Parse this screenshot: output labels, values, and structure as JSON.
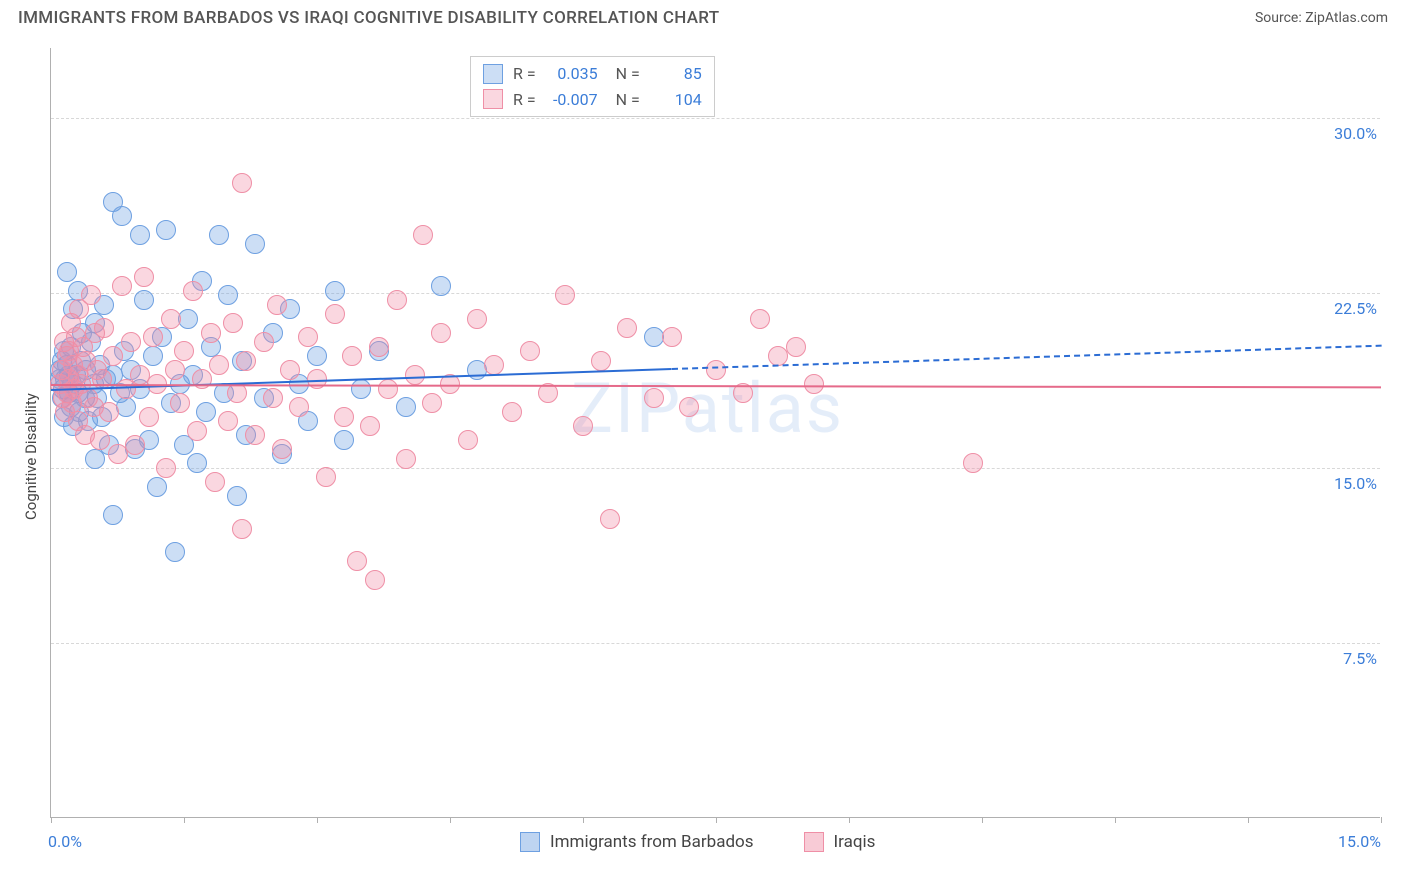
{
  "header": {
    "title": "IMMIGRANTS FROM BARBADOS VS IRAQI COGNITIVE DISABILITY CORRELATION CHART",
    "source": "Source: ZipAtlas.com"
  },
  "chart": {
    "type": "scatter",
    "y_axis_title": "Cognitive Disability",
    "xlim": [
      0,
      15
    ],
    "ylim": [
      0,
      33
    ],
    "x_tick_labels": {
      "left": "0.0%",
      "right": "15.0%"
    },
    "y_ticks": [
      {
        "value": 7.5,
        "label": "7.5%"
      },
      {
        "value": 15.0,
        "label": "15.0%"
      },
      {
        "value": 22.5,
        "label": "22.5%"
      },
      {
        "value": 30.0,
        "label": "30.0%"
      }
    ],
    "x_tick_positions": [
      0,
      1.5,
      3.0,
      4.5,
      6.0,
      7.5,
      9.0,
      10.5,
      12.0,
      13.5,
      15.0
    ],
    "grid_color": "#d8d8d8",
    "background_color": "#ffffff",
    "watermark": "ZIPatlas",
    "series": [
      {
        "name": "Immigrants from Barbados",
        "color_fill": "rgba(110,160,225,0.35)",
        "color_stroke": "#6ea0e1",
        "trend_color": "#2b6cd4",
        "marker_radius": 10,
        "R": "0.035",
        "N": "85",
        "trend": {
          "x1": 0,
          "y1": 18.4,
          "x2": 7.0,
          "y2": 19.3,
          "dash_to_x": 15.0,
          "dash_to_y": 20.3
        },
        "points": [
          [
            0.1,
            18.8
          ],
          [
            0.1,
            19.2
          ],
          [
            0.12,
            18.0
          ],
          [
            0.12,
            19.6
          ],
          [
            0.14,
            18.4
          ],
          [
            0.15,
            17.2
          ],
          [
            0.15,
            20.0
          ],
          [
            0.16,
            18.8
          ],
          [
            0.18,
            19.4
          ],
          [
            0.18,
            23.4
          ],
          [
            0.2,
            18.2
          ],
          [
            0.2,
            19.0
          ],
          [
            0.22,
            17.6
          ],
          [
            0.22,
            20.2
          ],
          [
            0.24,
            18.6
          ],
          [
            0.25,
            21.8
          ],
          [
            0.25,
            16.8
          ],
          [
            0.28,
            19.0
          ],
          [
            0.3,
            18.2
          ],
          [
            0.3,
            22.6
          ],
          [
            0.32,
            17.4
          ],
          [
            0.34,
            19.6
          ],
          [
            0.35,
            20.8
          ],
          [
            0.38,
            18.0
          ],
          [
            0.4,
            19.2
          ],
          [
            0.42,
            17.0
          ],
          [
            0.45,
            20.4
          ],
          [
            0.48,
            18.6
          ],
          [
            0.5,
            15.4
          ],
          [
            0.5,
            21.2
          ],
          [
            0.52,
            18.0
          ],
          [
            0.55,
            19.4
          ],
          [
            0.58,
            17.2
          ],
          [
            0.6,
            22.0
          ],
          [
            0.62,
            18.8
          ],
          [
            0.65,
            16.0
          ],
          [
            0.7,
            26.4
          ],
          [
            0.7,
            19.0
          ],
          [
            0.7,
            13.0
          ],
          [
            0.78,
            18.2
          ],
          [
            0.8,
            25.8
          ],
          [
            0.82,
            20.0
          ],
          [
            0.85,
            17.6
          ],
          [
            0.9,
            19.2
          ],
          [
            0.95,
            15.8
          ],
          [
            1.0,
            25.0
          ],
          [
            1.0,
            18.4
          ],
          [
            1.05,
            22.2
          ],
          [
            1.1,
            16.2
          ],
          [
            1.15,
            19.8
          ],
          [
            1.2,
            14.2
          ],
          [
            1.25,
            20.6
          ],
          [
            1.3,
            25.2
          ],
          [
            1.35,
            17.8
          ],
          [
            1.4,
            11.4
          ],
          [
            1.45,
            18.6
          ],
          [
            1.5,
            16.0
          ],
          [
            1.55,
            21.4
          ],
          [
            1.6,
            19.0
          ],
          [
            1.65,
            15.2
          ],
          [
            1.7,
            23.0
          ],
          [
            1.75,
            17.4
          ],
          [
            1.8,
            20.2
          ],
          [
            1.9,
            25.0
          ],
          [
            1.95,
            18.2
          ],
          [
            2.0,
            22.4
          ],
          [
            2.1,
            13.8
          ],
          [
            2.15,
            19.6
          ],
          [
            2.2,
            16.4
          ],
          [
            2.3,
            24.6
          ],
          [
            2.4,
            18.0
          ],
          [
            2.5,
            20.8
          ],
          [
            2.6,
            15.6
          ],
          [
            2.7,
            21.8
          ],
          [
            2.8,
            18.6
          ],
          [
            2.9,
            17.0
          ],
          [
            3.0,
            19.8
          ],
          [
            3.2,
            22.6
          ],
          [
            3.3,
            16.2
          ],
          [
            3.5,
            18.4
          ],
          [
            3.7,
            20.0
          ],
          [
            4.0,
            17.6
          ],
          [
            4.4,
            22.8
          ],
          [
            4.8,
            19.2
          ],
          [
            6.8,
            20.6
          ]
        ]
      },
      {
        "name": "Iraqis",
        "color_fill": "rgba(240,140,165,0.35)",
        "color_stroke": "#ef8fa6",
        "trend_color": "#e56a8a",
        "marker_radius": 10,
        "R": "-0.007",
        "N": "104",
        "trend": {
          "x1": 0,
          "y1": 18.6,
          "x2": 15.0,
          "y2": 18.5
        },
        "points": [
          [
            0.1,
            18.6
          ],
          [
            0.12,
            19.2
          ],
          [
            0.14,
            18.0
          ],
          [
            0.15,
            20.4
          ],
          [
            0.16,
            17.4
          ],
          [
            0.18,
            19.8
          ],
          [
            0.18,
            18.2
          ],
          [
            0.2,
            20.0
          ],
          [
            0.2,
            18.8
          ],
          [
            0.22,
            21.2
          ],
          [
            0.24,
            17.8
          ],
          [
            0.25,
            19.4
          ],
          [
            0.26,
            18.4
          ],
          [
            0.28,
            20.6
          ],
          [
            0.3,
            19.0
          ],
          [
            0.3,
            17.0
          ],
          [
            0.32,
            21.8
          ],
          [
            0.34,
            18.6
          ],
          [
            0.36,
            20.2
          ],
          [
            0.38,
            16.4
          ],
          [
            0.4,
            19.6
          ],
          [
            0.42,
            18.0
          ],
          [
            0.45,
            22.4
          ],
          [
            0.48,
            17.6
          ],
          [
            0.5,
            20.8
          ],
          [
            0.52,
            19.2
          ],
          [
            0.55,
            16.2
          ],
          [
            0.58,
            18.8
          ],
          [
            0.6,
            21.0
          ],
          [
            0.65,
            17.4
          ],
          [
            0.7,
            19.8
          ],
          [
            0.75,
            15.6
          ],
          [
            0.8,
            22.8
          ],
          [
            0.85,
            18.4
          ],
          [
            0.9,
            20.4
          ],
          [
            0.95,
            16.0
          ],
          [
            1.0,
            19.0
          ],
          [
            1.05,
            23.2
          ],
          [
            1.1,
            17.2
          ],
          [
            1.15,
            20.6
          ],
          [
            1.2,
            18.6
          ],
          [
            1.3,
            15.0
          ],
          [
            1.35,
            21.4
          ],
          [
            1.4,
            19.2
          ],
          [
            1.45,
            17.8
          ],
          [
            1.5,
            20.0
          ],
          [
            1.6,
            22.6
          ],
          [
            1.65,
            16.6
          ],
          [
            1.7,
            18.8
          ],
          [
            1.8,
            20.8
          ],
          [
            1.85,
            14.4
          ],
          [
            1.9,
            19.4
          ],
          [
            2.0,
            17.0
          ],
          [
            2.05,
            21.2
          ],
          [
            2.1,
            18.2
          ],
          [
            2.15,
            27.2
          ],
          [
            2.15,
            12.4
          ],
          [
            2.2,
            19.6
          ],
          [
            2.3,
            16.4
          ],
          [
            2.4,
            20.4
          ],
          [
            2.5,
            18.0
          ],
          [
            2.55,
            22.0
          ],
          [
            2.6,
            15.8
          ],
          [
            2.7,
            19.2
          ],
          [
            2.8,
            17.6
          ],
          [
            2.9,
            20.6
          ],
          [
            3.0,
            18.8
          ],
          [
            3.1,
            14.6
          ],
          [
            3.2,
            21.6
          ],
          [
            3.3,
            17.2
          ],
          [
            3.4,
            19.8
          ],
          [
            3.45,
            11.0
          ],
          [
            3.6,
            16.8
          ],
          [
            3.65,
            10.2
          ],
          [
            3.7,
            20.2
          ],
          [
            3.8,
            18.4
          ],
          [
            3.9,
            22.2
          ],
          [
            4.0,
            15.4
          ],
          [
            4.1,
            19.0
          ],
          [
            4.2,
            25.0
          ],
          [
            4.3,
            17.8
          ],
          [
            4.4,
            20.8
          ],
          [
            4.5,
            18.6
          ],
          [
            4.7,
            16.2
          ],
          [
            4.8,
            21.4
          ],
          [
            5.0,
            19.4
          ],
          [
            5.2,
            17.4
          ],
          [
            5.4,
            20.0
          ],
          [
            5.6,
            18.2
          ],
          [
            5.8,
            22.4
          ],
          [
            6.0,
            16.8
          ],
          [
            6.2,
            19.6
          ],
          [
            6.3,
            12.8
          ],
          [
            6.5,
            21.0
          ],
          [
            6.8,
            18.0
          ],
          [
            7.0,
            20.6
          ],
          [
            7.2,
            17.6
          ],
          [
            7.5,
            19.2
          ],
          [
            7.8,
            18.2
          ],
          [
            8.0,
            21.4
          ],
          [
            8.2,
            19.8
          ],
          [
            8.4,
            20.2
          ],
          [
            8.6,
            18.6
          ],
          [
            10.4,
            15.2
          ]
        ]
      }
    ],
    "legend": {
      "items": [
        {
          "label": "Immigrants from Barbados",
          "fill": "rgba(110,160,225,0.45)",
          "stroke": "#6ea0e1"
        },
        {
          "label": "Iraqis",
          "fill": "rgba(240,140,165,0.45)",
          "stroke": "#ef8fa6"
        }
      ]
    },
    "stats_labels": {
      "R": "R =",
      "N": "N ="
    }
  }
}
